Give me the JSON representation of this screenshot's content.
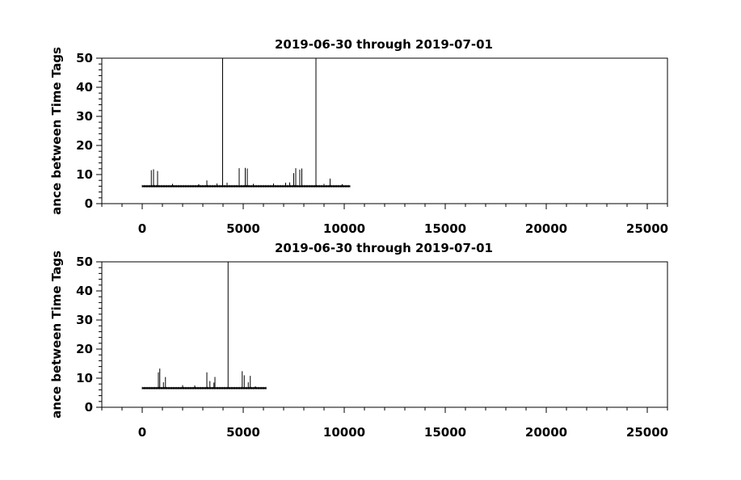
{
  "chart_data": [
    {
      "type": "line",
      "title": "2019-06-30 through 2019-07-01",
      "xlabel": "",
      "ylabel": "ance between Time Tags",
      "xlim": [
        -2000,
        26000
      ],
      "ylim": [
        0,
        50
      ],
      "xticks": [
        0,
        5000,
        10000,
        15000,
        20000,
        25000
      ],
      "xtick_labels": [
        "0",
        "5000",
        "10000",
        "15000",
        "20000",
        "25000"
      ],
      "yticks": [
        0,
        10,
        20,
        30,
        40,
        50
      ],
      "ytick_labels": [
        "0",
        "10",
        "20",
        "30",
        "40",
        "50"
      ],
      "grid": false,
      "series": [
        {
          "baseline": 6,
          "x_range": [
            0,
            10300
          ],
          "spikes": [
            {
              "x": 450,
              "y": 11.5
            },
            {
              "x": 560,
              "y": 11.8
            },
            {
              "x": 760,
              "y": 11.2
            },
            {
              "x": 1500,
              "y": 6.8
            },
            {
              "x": 2800,
              "y": 6.7
            },
            {
              "x": 3200,
              "y": 8.0
            },
            {
              "x": 3700,
              "y": 6.9
            },
            {
              "x": 3980,
              "y": 50
            },
            {
              "x": 4200,
              "y": 7.2
            },
            {
              "x": 4800,
              "y": 12.2
            },
            {
              "x": 5100,
              "y": 12.3
            },
            {
              "x": 5200,
              "y": 12.1
            },
            {
              "x": 5500,
              "y": 6.8
            },
            {
              "x": 6500,
              "y": 6.9
            },
            {
              "x": 7100,
              "y": 7.2
            },
            {
              "x": 7300,
              "y": 7.3
            },
            {
              "x": 7500,
              "y": 10.5
            },
            {
              "x": 7600,
              "y": 12.2
            },
            {
              "x": 7800,
              "y": 11.7
            },
            {
              "x": 7900,
              "y": 12.1
            },
            {
              "x": 8600,
              "y": 50
            },
            {
              "x": 9000,
              "y": 6.8
            },
            {
              "x": 9300,
              "y": 8.6
            },
            {
              "x": 9900,
              "y": 6.7
            }
          ]
        }
      ]
    },
    {
      "type": "line",
      "title": "2019-06-30 through 2019-07-01",
      "xlabel": "",
      "ylabel": "ance between Time Tags",
      "xlim": [
        -2000,
        26000
      ],
      "ylim": [
        0,
        50
      ],
      "xticks": [
        0,
        5000,
        10000,
        15000,
        20000,
        25000
      ],
      "xtick_labels": [
        "0",
        "5000",
        "10000",
        "15000",
        "20000",
        "25000"
      ],
      "yticks": [
        0,
        10,
        20,
        30,
        40,
        50
      ],
      "ytick_labels": [
        "0",
        "10",
        "20",
        "30",
        "40",
        "50"
      ],
      "grid": false,
      "series": [
        {
          "baseline": 6.6,
          "x_range": [
            0,
            6150
          ],
          "spikes": [
            {
              "x": 800,
              "y": 12.0
            },
            {
              "x": 870,
              "y": 13.3
            },
            {
              "x": 1050,
              "y": 8.6
            },
            {
              "x": 1150,
              "y": 10.4
            },
            {
              "x": 2000,
              "y": 7.6
            },
            {
              "x": 2600,
              "y": 7.5
            },
            {
              "x": 3200,
              "y": 12.0
            },
            {
              "x": 3350,
              "y": 9.0
            },
            {
              "x": 3550,
              "y": 8.5
            },
            {
              "x": 3600,
              "y": 10.4
            },
            {
              "x": 4250,
              "y": 50
            },
            {
              "x": 4950,
              "y": 12.4
            },
            {
              "x": 5050,
              "y": 11.0
            },
            {
              "x": 5250,
              "y": 8.6
            },
            {
              "x": 5350,
              "y": 10.8
            },
            {
              "x": 5600,
              "y": 7.2
            }
          ]
        }
      ]
    }
  ]
}
